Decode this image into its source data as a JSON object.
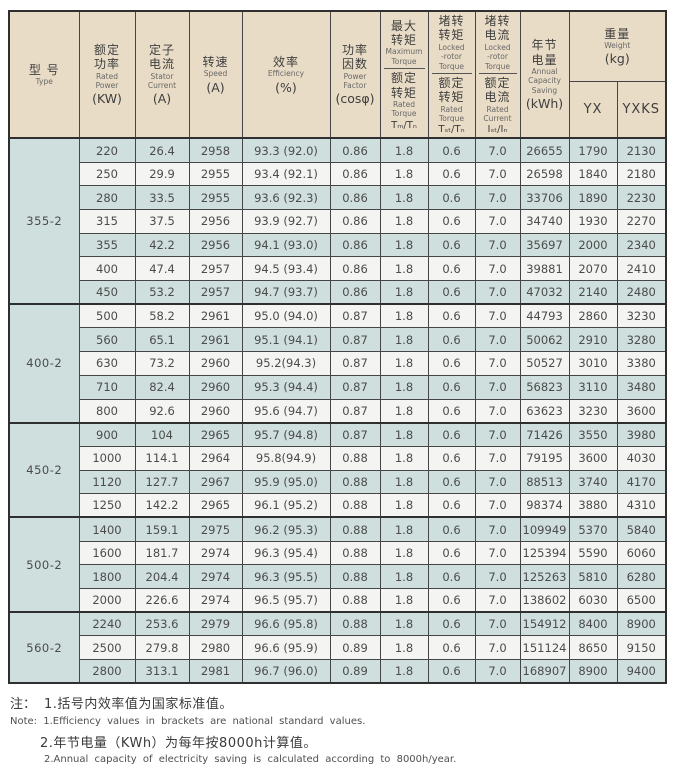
{
  "colors": {
    "header_bg": "#e9dcc6",
    "band_blue": "#cfdfde",
    "band_white": "#f4f5f2",
    "border": "#454545",
    "text": "#4b4b4b"
  },
  "header": {
    "type": {
      "zh": "型  号",
      "en": "Type"
    },
    "rated_power": {
      "zh": "额定\n功率",
      "en": "Rated\nPower",
      "unit": "(KW)"
    },
    "stator_current": {
      "zh": "定子\n电流",
      "en": "Stator\nCurrent",
      "unit": "(A)"
    },
    "speed": {
      "zh": "转速",
      "en": "Speed",
      "unit": "(A)"
    },
    "efficiency": {
      "zh": "效率",
      "en": "Efficiency",
      "unit": "(%)"
    },
    "power_factor": {
      "zh": "功率\n因数",
      "en": "Power\nFactor",
      "unit": "(cosφ)"
    },
    "max_torque": {
      "top_zh": "最大\n转矩",
      "top_en": "Maximum\nTorque",
      "bot_zh": "额定\n转矩",
      "bot_en": "Rated\nTorque",
      "sym": "Tₘ/Tₙ"
    },
    "locked_torque": {
      "top_zh": "堵转\n转矩",
      "top_en": "Locked\n-rotor\nTorque",
      "bot_zh": "额定\n转矩",
      "bot_en": "Rated\nTorque",
      "sym": "Tₛₜ/Tₙ"
    },
    "locked_current": {
      "top_zh": "堵转\n电流",
      "top_en": "Locked\n-rotor\nTorque",
      "bot_zh": "额定\n电流",
      "bot_en": "Rated\nCurrent",
      "sym": "Iₛₜ/Iₙ"
    },
    "annual_saving": {
      "zh": "年节\n电量",
      "en": "Annual\nCapacity\nSaving",
      "unit": "(kWh)"
    },
    "weight": {
      "zh": "重量",
      "en": "Weight",
      "unit": "(kg)",
      "sub_yx": "YX",
      "sub_yxks": "YXKS"
    }
  },
  "groups": [
    {
      "model": "355-2",
      "rows": [
        [
          "220",
          "26.4",
          "2958",
          "93.3 (92.0)",
          "0.86",
          "1.8",
          "0.6",
          "7.0",
          "26655",
          "1790",
          "2130"
        ],
        [
          "250",
          "29.9",
          "2955",
          "93.4 (92.1)",
          "0.86",
          "1.8",
          "0.6",
          "7.0",
          "26598",
          "1840",
          "2180"
        ],
        [
          "280",
          "33.5",
          "2955",
          "93.6 (92.3)",
          "0.86",
          "1.8",
          "0.6",
          "7.0",
          "33706",
          "1890",
          "2230"
        ],
        [
          "315",
          "37.5",
          "2956",
          "93.9 (92.7)",
          "0.86",
          "1.8",
          "0.6",
          "7.0",
          "34740",
          "1930",
          "2270"
        ],
        [
          "355",
          "42.2",
          "2956",
          "94.1 (93.0)",
          "0.86",
          "1.8",
          "0.6",
          "7.0",
          "35697",
          "2000",
          "2340"
        ],
        [
          "400",
          "47.4",
          "2957",
          "94.5 (93.4)",
          "0.86",
          "1.8",
          "0.6",
          "7.0",
          "39881",
          "2070",
          "2410"
        ],
        [
          "450",
          "53.2",
          "2957",
          "94.7 (93.7)",
          "0.86",
          "1.8",
          "0.6",
          "7.0",
          "47032",
          "2140",
          "2480"
        ]
      ]
    },
    {
      "model": "400-2",
      "rows": [
        [
          "500",
          "58.2",
          "2961",
          "95.0 (94.0)",
          "0.87",
          "1.8",
          "0.6",
          "7.0",
          "44793",
          "2860",
          "3230"
        ],
        [
          "560",
          "65.1",
          "2961",
          "95.1 (94.1)",
          "0.87",
          "1.8",
          "0.6",
          "7.0",
          "50062",
          "2910",
          "3280"
        ],
        [
          "630",
          "73.2",
          "2960",
          "95.2(94.3)",
          "0.87",
          "1.8",
          "0.6",
          "7.0",
          "50527",
          "3010",
          "3380"
        ],
        [
          "710",
          "82.4",
          "2960",
          "95.3 (94.4)",
          "0.87",
          "1.8",
          "0.6",
          "7.0",
          "56823",
          "3110",
          "3480"
        ],
        [
          "800",
          "92.6",
          "2960",
          "95.6 (94.7)",
          "0.87",
          "1.8",
          "0.6",
          "7.0",
          "63623",
          "3230",
          "3600"
        ]
      ]
    },
    {
      "model": "450-2",
      "rows": [
        [
          "900",
          "104",
          "2965",
          "95.7 (94.8)",
          "0.87",
          "1.8",
          "0.6",
          "7.0",
          "71426",
          "3550",
          "3980"
        ],
        [
          "1000",
          "114.1",
          "2964",
          "95.8(94.9)",
          "0.88",
          "1.8",
          "0.6",
          "7.0",
          "79195",
          "3600",
          "4030"
        ],
        [
          "1120",
          "127.7",
          "2967",
          "95.9 (95.0)",
          "0.88",
          "1.8",
          "0.6",
          "7.0",
          "88513",
          "3740",
          "4170"
        ],
        [
          "1250",
          "142.2",
          "2965",
          "96.1 (95.2)",
          "0.88",
          "1.8",
          "0.6",
          "7.0",
          "98374",
          "3880",
          "4310"
        ]
      ]
    },
    {
      "model": "500-2",
      "rows": [
        [
          "1400",
          "159.1",
          "2975",
          "96.2 (95.3)",
          "0.88",
          "1.8",
          "0.6",
          "7.0",
          "109949",
          "5370",
          "5840"
        ],
        [
          "1600",
          "181.7",
          "2974",
          "96.3 (95.4)",
          "0.88",
          "1.8",
          "0.6",
          "7.0",
          "125394",
          "5590",
          "6060"
        ],
        [
          "1800",
          "204.4",
          "2974",
          "96.3 (95.5)",
          "0.88",
          "1.8",
          "0.6",
          "7.0",
          "125263",
          "5810",
          "6280"
        ],
        [
          "2000",
          "226.6",
          "2974",
          "96.5 (95.7)",
          "0.88",
          "1.8",
          "0.6",
          "7.0",
          "138602",
          "6030",
          "6500"
        ]
      ]
    },
    {
      "model": "560-2",
      "rows": [
        [
          "2240",
          "253.6",
          "2979",
          "96.6 (95.8)",
          "0.88",
          "1.8",
          "0.6",
          "7.0",
          "154912",
          "8400",
          "8900"
        ],
        [
          "2500",
          "279.8",
          "2980",
          "96.6 (95.9)",
          "0.89",
          "1.8",
          "0.6",
          "7.0",
          "151124",
          "8650",
          "9150"
        ],
        [
          "2800",
          "313.1",
          "2981",
          "96.7 (96.0)",
          "0.89",
          "1.8",
          "0.6",
          "7.0",
          "168907",
          "8900",
          "9400"
        ]
      ]
    }
  ],
  "notes": {
    "zh_label": "注：",
    "note1_zh": "1.括号内效率值为国家标准值。",
    "note1_en": "Note: 1.Efficiency values in brackets are national standard values.",
    "note2_zh": "2.年节电量（KWh）为每年按8000h计算值。",
    "note2_en": "2.Annual capacity of electricity saving is calculated according to 8000h/year."
  }
}
